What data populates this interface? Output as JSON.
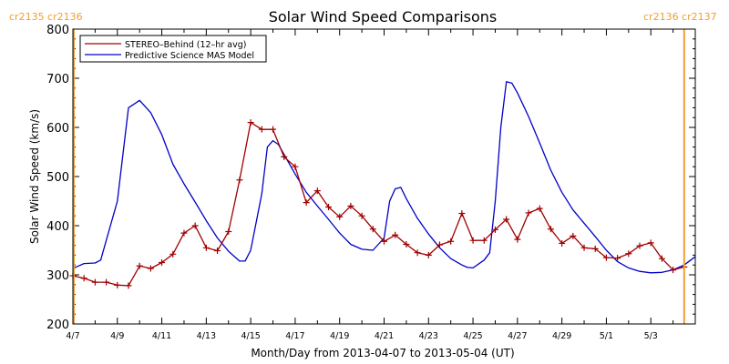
{
  "chart_data": {
    "type": "line",
    "title": "Solar Wind Speed Comparisons",
    "xlabel": "Month/Day from 2013-04-07 to 2013-05-04 (UT)",
    "ylabel": "Solar Wind Speed (km/s)",
    "x_range": [
      "2013-04-07",
      "2013-05-05"
    ],
    "ylim": [
      200,
      800
    ],
    "yticks": [
      200,
      300,
      400,
      500,
      600,
      700,
      800
    ],
    "xticks": [
      "4/7",
      "4/9",
      "4/11",
      "4/13",
      "4/15",
      "4/17",
      "4/19",
      "4/21",
      "4/23",
      "4/25",
      "4/27",
      "4/29",
      "5/1",
      "5/3"
    ],
    "grid": false,
    "legend_position": "top-left",
    "carrington_left": "cr2135 cr2136",
    "carrington_right": "cr2136 cr2137",
    "colors": {
      "stereo": "#a00000",
      "model": "#0000c8",
      "marker": "#f0a030"
    },
    "series": [
      {
        "name": "STEREO–Behind (12–hr avg)",
        "color": "#a00000",
        "marker": "plus",
        "points": [
          [
            "2013-04-07T00:00",
            298
          ],
          [
            "2013-04-07T12:00",
            293
          ],
          [
            "2013-04-08T00:00",
            285
          ],
          [
            "2013-04-08T12:00",
            285
          ],
          [
            "2013-04-09T00:00",
            279
          ],
          [
            "2013-04-09T12:00",
            278
          ],
          [
            "2013-04-10T00:00",
            318
          ],
          [
            "2013-04-10T12:00",
            313
          ],
          [
            "2013-04-11T00:00",
            325
          ],
          [
            "2013-04-11T12:00",
            342
          ],
          [
            "2013-04-12T00:00",
            385
          ],
          [
            "2013-04-12T12:00",
            400
          ],
          [
            "2013-04-13T00:00",
            355
          ],
          [
            "2013-04-13T12:00",
            349
          ],
          [
            "2013-04-14T00:00",
            388
          ],
          [
            "2013-04-14T12:00",
            493
          ],
          [
            "2013-04-15T00:00",
            610
          ],
          [
            "2013-04-15T12:00",
            596
          ],
          [
            "2013-04-16T00:00",
            596
          ],
          [
            "2013-04-16T12:00",
            540
          ],
          [
            "2013-04-17T00:00",
            520
          ],
          [
            "2013-04-17T12:00",
            447
          ],
          [
            "2013-04-18T00:00",
            471
          ],
          [
            "2013-04-18T12:00",
            438
          ],
          [
            "2013-04-19T00:00",
            418
          ],
          [
            "2013-04-19T12:00",
            440
          ],
          [
            "2013-04-20T00:00",
            420
          ],
          [
            "2013-04-20T12:00",
            393
          ],
          [
            "2013-04-21T00:00",
            368
          ],
          [
            "2013-04-21T12:00",
            381
          ],
          [
            "2013-04-22T00:00",
            362
          ],
          [
            "2013-04-22T12:00",
            345
          ],
          [
            "2013-04-23T00:00",
            340
          ],
          [
            "2013-04-23T12:00",
            361
          ],
          [
            "2013-04-24T00:00",
            368
          ],
          [
            "2013-04-24T12:00",
            425
          ],
          [
            "2013-04-25T00:00",
            370
          ],
          [
            "2013-04-25T12:00",
            370
          ],
          [
            "2013-04-26T00:00",
            392
          ],
          [
            "2013-04-26T12:00",
            413
          ],
          [
            "2013-04-27T00:00",
            372
          ],
          [
            "2013-04-27T12:00",
            426
          ],
          [
            "2013-04-28T00:00",
            435
          ],
          [
            "2013-04-28T12:00",
            393
          ],
          [
            "2013-04-29T00:00",
            364
          ],
          [
            "2013-04-29T12:00",
            379
          ],
          [
            "2013-04-30T00:00",
            355
          ],
          [
            "2013-04-30T12:00",
            353
          ],
          [
            "2013-05-01T00:00",
            335
          ],
          [
            "2013-05-01T12:00",
            334
          ],
          [
            "2013-05-02T00:00",
            343
          ],
          [
            "2013-05-02T12:00",
            359
          ],
          [
            "2013-05-03T00:00",
            365
          ],
          [
            "2013-05-03T12:00",
            333
          ],
          [
            "2013-05-04T00:00",
            310
          ],
          [
            "2013-05-04T12:00",
            316
          ]
        ]
      },
      {
        "name": "Predictive Science MAS Model",
        "color": "#0000c8",
        "marker": "none",
        "points": [
          [
            "2013-04-07T00:00",
            313
          ],
          [
            "2013-04-07T06:00",
            318
          ],
          [
            "2013-04-07T12:00",
            323
          ],
          [
            "2013-04-08T00:00",
            324
          ],
          [
            "2013-04-08T06:00",
            330
          ],
          [
            "2013-04-08T12:00",
            370
          ],
          [
            "2013-04-09T00:00",
            450
          ],
          [
            "2013-04-09T12:00",
            640
          ],
          [
            "2013-04-10T00:00",
            655
          ],
          [
            "2013-04-10T12:00",
            630
          ],
          [
            "2013-04-11T00:00",
            585
          ],
          [
            "2013-04-11T12:00",
            525
          ],
          [
            "2013-04-12T00:00",
            485
          ],
          [
            "2013-04-12T12:00",
            448
          ],
          [
            "2013-04-13T00:00",
            410
          ],
          [
            "2013-04-13T12:00",
            375
          ],
          [
            "2013-04-14T00:00",
            348
          ],
          [
            "2013-04-14T12:00",
            328
          ],
          [
            "2013-04-14T18:00",
            328
          ],
          [
            "2013-04-15T00:00",
            350
          ],
          [
            "2013-04-15T12:00",
            465
          ],
          [
            "2013-04-15T18:00",
            560
          ],
          [
            "2013-04-16T00:00",
            573
          ],
          [
            "2013-04-16T06:00",
            565
          ],
          [
            "2013-04-16T12:00",
            545
          ],
          [
            "2013-04-17T00:00",
            505
          ],
          [
            "2013-04-17T12:00",
            468
          ],
          [
            "2013-04-18T00:00",
            440
          ],
          [
            "2013-04-18T12:00",
            413
          ],
          [
            "2013-04-19T00:00",
            385
          ],
          [
            "2013-04-19T12:00",
            362
          ],
          [
            "2013-04-20T00:00",
            352
          ],
          [
            "2013-04-20T12:00",
            350
          ],
          [
            "2013-04-21T00:00",
            375
          ],
          [
            "2013-04-21T06:00",
            450
          ],
          [
            "2013-04-21T12:00",
            475
          ],
          [
            "2013-04-21T18:00",
            478
          ],
          [
            "2013-04-22T00:00",
            455
          ],
          [
            "2013-04-22T12:00",
            415
          ],
          [
            "2013-04-23T00:00",
            383
          ],
          [
            "2013-04-23T12:00",
            355
          ],
          [
            "2013-04-24T00:00",
            333
          ],
          [
            "2013-04-24T12:00",
            320
          ],
          [
            "2013-04-24T18:00",
            315
          ],
          [
            "2013-04-25T00:00",
            314
          ],
          [
            "2013-04-25T12:00",
            330
          ],
          [
            "2013-04-25T18:00",
            345
          ],
          [
            "2013-04-26T00:00",
            450
          ],
          [
            "2013-04-26T06:00",
            600
          ],
          [
            "2013-04-26T12:00",
            693
          ],
          [
            "2013-04-26T18:00",
            690
          ],
          [
            "2013-04-27T00:00",
            670
          ],
          [
            "2013-04-27T12:00",
            622
          ],
          [
            "2013-04-28T00:00",
            568
          ],
          [
            "2013-04-28T12:00",
            513
          ],
          [
            "2013-04-29T00:00",
            468
          ],
          [
            "2013-04-29T12:00",
            432
          ],
          [
            "2013-04-30T00:00",
            405
          ],
          [
            "2013-04-30T12:00",
            378
          ],
          [
            "2013-05-01T00:00",
            350
          ],
          [
            "2013-05-01T12:00",
            327
          ],
          [
            "2013-05-02T00:00",
            314
          ],
          [
            "2013-05-02T12:00",
            307
          ],
          [
            "2013-05-03T00:00",
            304
          ],
          [
            "2013-05-03T12:00",
            305
          ],
          [
            "2013-05-04T00:00",
            310
          ],
          [
            "2013-05-04T12:00",
            320
          ],
          [
            "2013-05-05T00:00",
            337
          ]
        ]
      }
    ]
  }
}
